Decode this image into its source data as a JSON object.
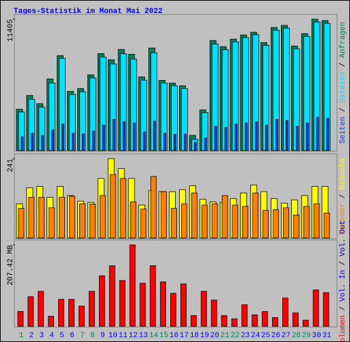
{
  "title": "Tages-Statistik im Monat Mai 2022",
  "legend_separator": " / ",
  "categories": [
    "1",
    "2",
    "3",
    "4",
    "5",
    "6",
    "7",
    "8",
    "9",
    "10",
    "11",
    "12",
    "13",
    "14",
    "15",
    "16",
    "17",
    "18",
    "19",
    "20",
    "21",
    "22",
    "23",
    "24",
    "25",
    "26",
    "27",
    "28",
    "29",
    "30",
    "31"
  ],
  "category_colors": [
    "#00805c",
    "#0000ff",
    "#0000ff",
    "#0000ff",
    "#0000ff",
    "#0000ff",
    "#00805c",
    "#00805c",
    "#0000ff",
    "#0000ff",
    "#0000ff",
    "#0000ff",
    "#0000ff",
    "#00805c",
    "#00805c",
    "#0000ff",
    "#0000ff",
    "#0000ff",
    "#0000ff",
    "#0000ff",
    "#00805c",
    "#00805c",
    "#0000ff",
    "#0000ff",
    "#0000ff",
    "#0000ff",
    "#0000ff",
    "#00805c",
    "#00805c",
    "#0000ff",
    "#0000ff"
  ],
  "chart_data": [
    {
      "type": "bar",
      "ylim": [
        0,
        11405
      ],
      "yticks": [
        11405
      ],
      "series": [
        {
          "name": "Anfragen",
          "color": "#00805c",
          "values": [
            3582,
            4776,
            4060,
            6209,
            8239,
            5134,
            5373,
            6567,
            8418,
            7880,
            8776,
            8358,
            6388,
            8895,
            6089,
            5851,
            5612,
            1313,
            3522,
            9552,
            9015,
            9671,
            10030,
            10268,
            9373,
            10686,
            10865,
            9074,
            10149,
            11405,
            11283
          ]
        },
        {
          "name": "Dateien",
          "color": "#00e0ff",
          "values": [
            3340,
            4440,
            3760,
            5860,
            8000,
            4860,
            5100,
            6300,
            8120,
            7520,
            8400,
            7940,
            6100,
            8480,
            5850,
            5610,
            5370,
            960,
            3280,
            9250,
            8760,
            9430,
            9800,
            10050,
            9130,
            10450,
            10630,
            8830,
            9900,
            11160,
            11040
          ]
        },
        {
          "name": "Seiten",
          "color": "#0040ff",
          "values": [
            1200,
            1500,
            1300,
            1800,
            2300,
            1500,
            1450,
            1700,
            2200,
            2700,
            2500,
            2400,
            1600,
            2550,
            1500,
            1400,
            1450,
            700,
            1100,
            2100,
            2000,
            2300,
            2400,
            2500,
            2200,
            2700,
            2600,
            2100,
            2400,
            2900,
            2800
          ]
        }
      ]
    },
    {
      "type": "bar",
      "ylim": [
        0,
        241
      ],
      "yticks": [
        241
      ],
      "series": [
        {
          "name": "Besuche",
          "color": "#ffff00",
          "values": [
            104,
            153,
            157,
            124,
            157,
            129,
            112,
            108,
            181,
            241,
            211,
            181,
            100,
            145,
            141,
            141,
            147,
            159,
            118,
            110,
            108,
            120,
            137,
            161,
            141,
            120,
            106,
            116,
            129,
            157,
            157
          ]
        },
        {
          "name": "Rechner",
          "color": "#ff8000",
          "values": [
            90,
            124,
            124,
            92,
            124,
            127,
            104,
            103,
            129,
            193,
            181,
            110,
            88,
            187,
            141,
            90,
            104,
            137,
            100,
            104,
            129,
            100,
            96,
            137,
            84,
            86,
            92,
            70,
            96,
            104,
            76
          ]
        }
      ]
    },
    {
      "type": "bar",
      "ylim": [
        0,
        207.42
      ],
      "yticks": [
        {
          "value": 207.42,
          "label": "207.42 MB"
        }
      ],
      "series": [
        {
          "name": "Volumen",
          "color": "#ff0000",
          "values": [
            37.7,
            75.4,
            89.1,
            25.7,
            68.6,
            68.6,
            51.4,
            89.1,
            128.6,
            154.3,
            116.6,
            207.42,
            109.7,
            154.3,
            113.1,
            84.0,
            108.0,
            27.4,
            89.1,
            66.8,
            27.4,
            18.9,
            54.9,
            29.1,
            37.7,
            22.3,
            72.0,
            34.3,
            15.4,
            92.6,
            85.7
          ]
        }
      ],
      "legend_extra": [
        {
          "name": "Vol. In",
          "color": "#0000ff"
        },
        {
          "name": "Vol. Out",
          "color": "#0000c0"
        }
      ]
    }
  ]
}
